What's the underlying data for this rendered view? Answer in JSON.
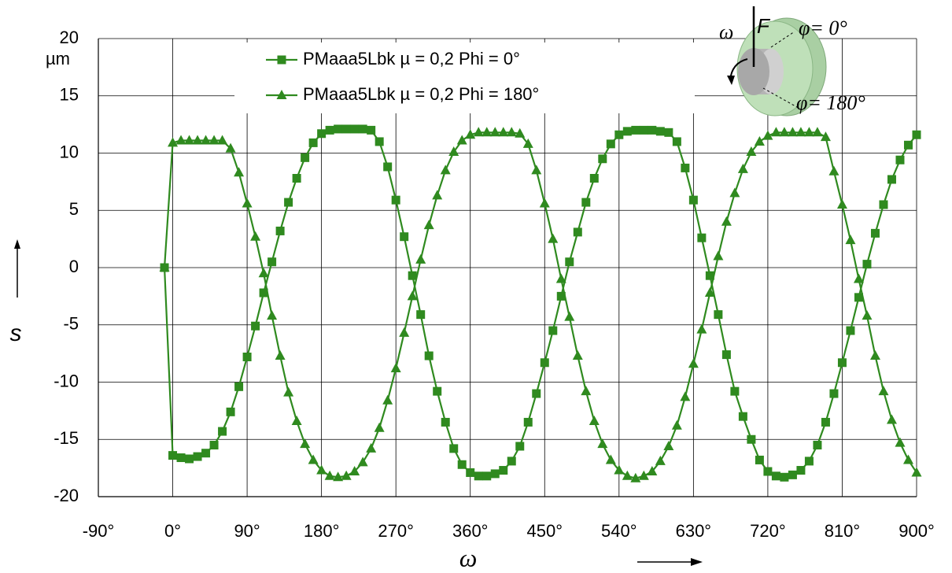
{
  "chart_data": {
    "type": "line",
    "x_label": "ω",
    "y_label": "s",
    "y_unit": "µm",
    "inset_labels": [
      "ω",
      "F",
      "φ= 0°",
      "φ= 180°"
    ],
    "xlim": [
      -90,
      900
    ],
    "ylim": [
      -20,
      20
    ],
    "xticks": [
      {
        "value": -90,
        "label": "-90°"
      },
      {
        "value": 0,
        "label": "0°"
      },
      {
        "value": 90,
        "label": "90°"
      },
      {
        "value": 180,
        "label": "180°"
      },
      {
        "value": 270,
        "label": "270°"
      },
      {
        "value": 360,
        "label": "360°"
      },
      {
        "value": 450,
        "label": "450°"
      },
      {
        "value": 540,
        "label": "540°"
      },
      {
        "value": 630,
        "label": "630°"
      },
      {
        "value": 720,
        "label": "720°"
      },
      {
        "value": 810,
        "label": "810°"
      },
      {
        "value": 900,
        "label": "900°"
      }
    ],
    "yticks": [
      20,
      15,
      10,
      5,
      0,
      -5,
      -10,
      -15,
      -20
    ],
    "grid": true,
    "legend": "top",
    "x": [
      -10,
      0,
      10,
      20,
      30,
      40,
      50,
      60,
      70,
      80,
      90,
      100,
      110,
      120,
      130,
      140,
      150,
      160,
      170,
      180,
      190,
      200,
      210,
      220,
      230,
      240,
      250,
      260,
      270,
      280,
      290,
      300,
      310,
      320,
      330,
      340,
      350,
      360,
      370,
      380,
      390,
      400,
      410,
      420,
      430,
      440,
      450,
      460,
      470,
      480,
      490,
      500,
      510,
      520,
      530,
      540,
      550,
      560,
      570,
      580,
      590,
      600,
      610,
      620,
      630,
      640,
      650,
      660,
      670,
      680,
      690,
      700,
      710,
      720,
      730,
      740,
      750,
      760,
      770,
      780,
      790,
      800,
      810,
      820,
      830,
      840,
      850,
      860,
      870,
      880,
      890,
      900
    ],
    "series": [
      {
        "name": "PMaaa5Lbk  µ = 0,2  Phi = 0°",
        "color": "#2f8a1f",
        "marker": "square",
        "values": [
          0,
          -16.4,
          -16.6,
          -16.7,
          -16.5,
          -16.2,
          -15.5,
          -14.3,
          -12.6,
          -10.4,
          -7.8,
          -5.1,
          -2.2,
          0.5,
          3.2,
          5.7,
          7.8,
          9.6,
          10.9,
          11.7,
          12.0,
          12.1,
          12.1,
          12.1,
          12.1,
          12.0,
          11.0,
          8.8,
          5.9,
          2.7,
          -0.7,
          -4.1,
          -7.7,
          -10.8,
          -13.5,
          -15.8,
          -17.2,
          -17.9,
          -18.2,
          -18.2,
          -18.0,
          -17.7,
          -16.9,
          -15.6,
          -13.5,
          -11.0,
          -8.3,
          -5.5,
          -2.5,
          0.5,
          3.1,
          5.7,
          7.8,
          9.5,
          10.8,
          11.6,
          11.9,
          12.0,
          12.0,
          12.0,
          11.9,
          11.8,
          11.0,
          8.7,
          5.9,
          2.6,
          -0.7,
          -4.1,
          -7.6,
          -10.8,
          -13.0,
          -15.0,
          -16.8,
          -17.8,
          -18.2,
          -18.3,
          -18.1,
          -17.7,
          -16.9,
          -15.5,
          -13.5,
          -11.0,
          -8.3,
          -5.5,
          -2.6,
          0.3,
          3.0,
          5.5,
          7.7,
          9.4,
          10.7,
          11.6
        ]
      },
      {
        "name": "PMaaa5Lbk  µ = 0,2  Phi = 180°",
        "color": "#2f8a1f",
        "marker": "triangle",
        "values": [
          0,
          10.9,
          11.1,
          11.1,
          11.1,
          11.1,
          11.1,
          11.1,
          10.4,
          8.3,
          5.6,
          2.7,
          -0.5,
          -4.2,
          -7.7,
          -10.9,
          -13.4,
          -15.4,
          -16.8,
          -17.7,
          -18.2,
          -18.3,
          -18.2,
          -17.8,
          -17.0,
          -15.8,
          -14.0,
          -11.6,
          -8.8,
          -5.7,
          -2.5,
          0.7,
          3.7,
          6.3,
          8.5,
          10.1,
          11.1,
          11.6,
          11.8,
          11.8,
          11.8,
          11.8,
          11.8,
          11.7,
          10.8,
          8.5,
          5.6,
          2.5,
          -1.0,
          -4.3,
          -7.7,
          -10.8,
          -13.4,
          -15.4,
          -16.8,
          -17.7,
          -18.2,
          -18.4,
          -18.2,
          -17.8,
          -16.9,
          -15.6,
          -13.8,
          -11.3,
          -8.4,
          -5.4,
          -2.2,
          1.0,
          4.0,
          6.5,
          8.6,
          10.1,
          11.0,
          11.5,
          11.8,
          11.8,
          11.8,
          11.8,
          11.8,
          11.8,
          11.4,
          8.4,
          5.5,
          2.4,
          -1.0,
          -4.2,
          -7.7,
          -10.8,
          -13.3,
          -15.3,
          -16.8,
          -17.9
        ]
      }
    ]
  }
}
